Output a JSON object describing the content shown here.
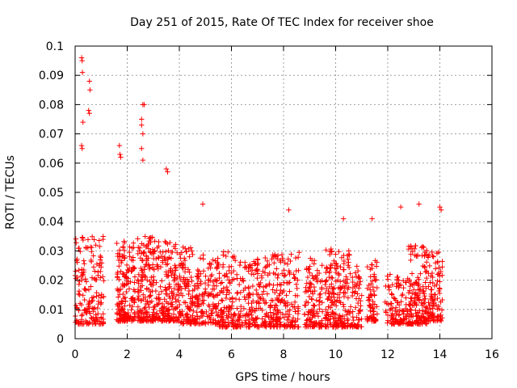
{
  "chart_data": {
    "type": "scatter",
    "title": "Day 251 of 2015, Rate Of TEC Index for receiver shoe",
    "xlabel": "GPS time / hours",
    "ylabel": "ROTI / TECUs",
    "xlim": [
      0,
      16
    ],
    "ylim": [
      0,
      0.1
    ],
    "grid": true,
    "marker": "+",
    "series_color": "#ff0000",
    "x_ticks": [
      0,
      2,
      4,
      6,
      8,
      10,
      12,
      14,
      16
    ],
    "y_ticks": [
      0,
      0.01,
      0.02,
      0.03,
      0.04,
      0.05,
      0.06,
      0.07,
      0.08,
      0.09,
      0.1
    ],
    "x_tick_labels": [
      "0",
      "2",
      "4",
      "6",
      "8",
      "10",
      "12",
      "14",
      "16"
    ],
    "y_tick_labels": [
      "0",
      "0.01",
      "0.02",
      "0.03",
      "0.04",
      "0.05",
      "0.06",
      "0.07",
      "0.08",
      "0.09",
      "0.1"
    ],
    "notable_points": [
      {
        "x": 0.25,
        "y": 0.096
      },
      {
        "x": 0.27,
        "y": 0.095
      },
      {
        "x": 0.28,
        "y": 0.091
      },
      {
        "x": 0.3,
        "y": 0.074
      },
      {
        "x": 0.25,
        "y": 0.066
      },
      {
        "x": 0.27,
        "y": 0.065
      },
      {
        "x": 0.55,
        "y": 0.088
      },
      {
        "x": 0.57,
        "y": 0.085
      },
      {
        "x": 0.52,
        "y": 0.078
      },
      {
        "x": 0.55,
        "y": 0.077
      },
      {
        "x": 2.6,
        "y": 0.08
      },
      {
        "x": 2.65,
        "y": 0.08
      },
      {
        "x": 2.55,
        "y": 0.075
      },
      {
        "x": 2.55,
        "y": 0.073
      },
      {
        "x": 2.6,
        "y": 0.07
      },
      {
        "x": 2.55,
        "y": 0.065
      },
      {
        "x": 2.6,
        "y": 0.061
      },
      {
        "x": 1.7,
        "y": 0.066
      },
      {
        "x": 1.72,
        "y": 0.063
      },
      {
        "x": 1.75,
        "y": 0.062
      },
      {
        "x": 3.5,
        "y": 0.058
      },
      {
        "x": 3.55,
        "y": 0.057
      },
      {
        "x": 13.2,
        "y": 0.046
      },
      {
        "x": 14.0,
        "y": 0.045
      },
      {
        "x": 14.05,
        "y": 0.044
      },
      {
        "x": 12.5,
        "y": 0.045
      },
      {
        "x": 8.2,
        "y": 0.044
      },
      {
        "x": 11.4,
        "y": 0.041
      },
      {
        "x": 10.3,
        "y": 0.041
      },
      {
        "x": 4.9,
        "y": 0.046
      }
    ],
    "clusters": [
      {
        "x_range": [
          0.0,
          1.1
        ],
        "y_range": [
          0.005,
          0.035
        ],
        "count": 170
      },
      {
        "x_range": [
          1.6,
          2.3
        ],
        "y_range": [
          0.006,
          0.034
        ],
        "count": 170
      },
      {
        "x_range": [
          2.4,
          3.0
        ],
        "y_range": [
          0.006,
          0.035
        ],
        "count": 150
      },
      {
        "x_range": [
          3.0,
          4.0
        ],
        "y_range": [
          0.006,
          0.034
        ],
        "count": 200
      },
      {
        "x_range": [
          4.0,
          5.5
        ],
        "y_range": [
          0.005,
          0.032
        ],
        "count": 260
      },
      {
        "x_range": [
          5.5,
          6.3
        ],
        "y_range": [
          0.004,
          0.03
        ],
        "count": 130
      },
      {
        "x_range": [
          6.3,
          7.5
        ],
        "y_range": [
          0.004,
          0.028
        ],
        "count": 180
      },
      {
        "x_range": [
          7.5,
          8.6
        ],
        "y_range": [
          0.004,
          0.03
        ],
        "count": 170
      },
      {
        "x_range": [
          8.8,
          9.5
        ],
        "y_range": [
          0.004,
          0.028
        ],
        "count": 120
      },
      {
        "x_range": [
          9.6,
          10.6
        ],
        "y_range": [
          0.004,
          0.032
        ],
        "count": 200
      },
      {
        "x_range": [
          10.6,
          11.0
        ],
        "y_range": [
          0.004,
          0.025
        ],
        "count": 60
      },
      {
        "x_range": [
          11.2,
          11.6
        ],
        "y_range": [
          0.006,
          0.027
        ],
        "count": 70
      },
      {
        "x_range": [
          11.9,
          12.8
        ],
        "y_range": [
          0.005,
          0.022
        ],
        "count": 110
      },
      {
        "x_range": [
          12.8,
          13.5
        ],
        "y_range": [
          0.005,
          0.032
        ],
        "count": 160
      },
      {
        "x_range": [
          13.5,
          14.1
        ],
        "y_range": [
          0.006,
          0.03
        ],
        "count": 100
      }
    ]
  }
}
